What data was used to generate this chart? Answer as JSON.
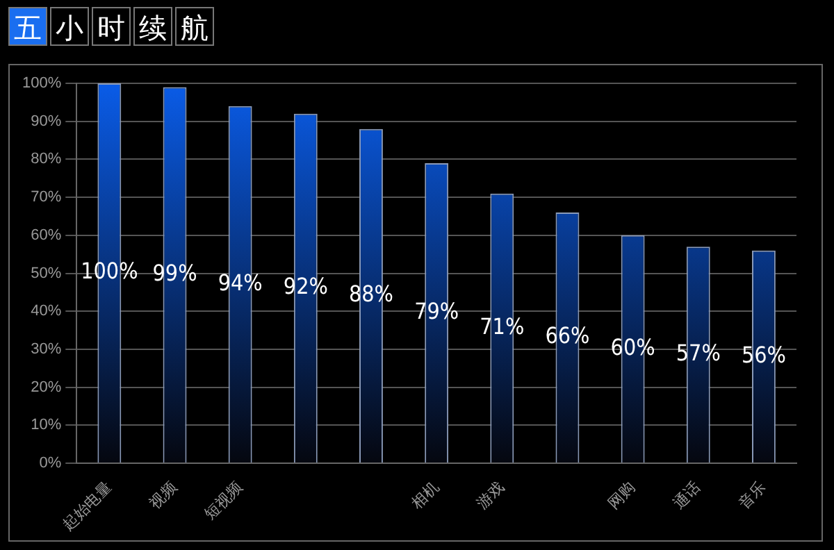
{
  "chart_data": {
    "type": "bar",
    "title": "五小时续航",
    "categories": [
      "起始电量",
      "视频",
      "短视频",
      null,
      null,
      "相机",
      "游戏",
      null,
      "网购",
      "通话",
      "音乐"
    ],
    "values": [
      100,
      99,
      94,
      92,
      88,
      79,
      71,
      66,
      60,
      57,
      56
    ],
    "value_labels": [
      "100%",
      "99%",
      "94%",
      "92%",
      "88%",
      "79%",
      "71%",
      "66%",
      "60%",
      "57%",
      "56%"
    ],
    "color": "#0a5ce8",
    "ylim": [
      0,
      100
    ],
    "yticks": [
      {
        "value": 0,
        "label": "0%"
      },
      {
        "value": 10,
        "label": "10%"
      },
      {
        "value": 20,
        "label": "20%"
      },
      {
        "value": 30,
        "label": "30%"
      },
      {
        "value": 40,
        "label": "40%"
      },
      {
        "value": 50,
        "label": "50%"
      },
      {
        "value": 60,
        "label": "60%"
      },
      {
        "value": 70,
        "label": "70%"
      },
      {
        "value": 80,
        "label": "80%"
      },
      {
        "value": 90,
        "label": "90%"
      },
      {
        "value": 100,
        "label": "100%"
      }
    ],
    "grid": "y",
    "legend": false
  }
}
